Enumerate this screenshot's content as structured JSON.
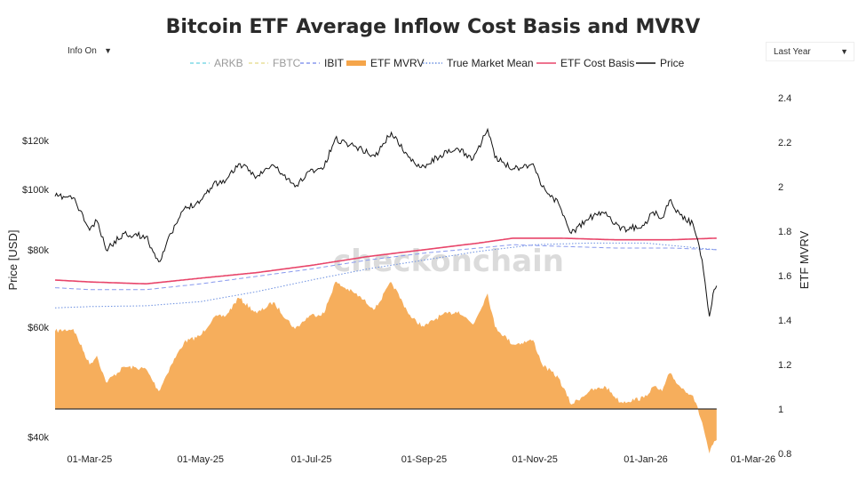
{
  "title": "Bitcoin ETF Average Inflow Cost Basis and MVRV",
  "controls": {
    "info_toggle": "Info On",
    "range_select": "Last Year",
    "arrow": "▼"
  },
  "watermark": "checkonchain",
  "colors": {
    "arkb": "#7fd8e6",
    "fbtc": "#e8df9a",
    "ibit": "#8899ee",
    "mvrv_fill": "#f5a54a",
    "true_market_mean": "#6b8fe0",
    "cost_basis": "#e8456a",
    "price": "#111111"
  },
  "chart_data": {
    "type": "line",
    "title": "Bitcoin ETF Average Inflow Cost Basis and MVRV",
    "ylabel": "Price [USD]",
    "y2label": "ETF MVRV",
    "yscale": "log",
    "ylim": [
      37000,
      150000
    ],
    "y2lim": [
      0.78,
      2.48
    ],
    "xlim": [
      "2025-02-09",
      "2026-03-06"
    ],
    "x_ticks": [
      "01-Mar-25",
      "01-May-25",
      "01-Jul-25",
      "01-Sep-25",
      "01-Nov-25",
      "01-Jan-26",
      "01-Mar-26"
    ],
    "y_ticks": [
      "$40k",
      "$60k",
      "$80k",
      "$100k",
      "$120k"
    ],
    "y_tick_values": [
      40000,
      60000,
      80000,
      100000,
      120000
    ],
    "y2_ticks": [
      "0.8",
      "1",
      "1.2",
      "1.4",
      "1.6",
      "1.8",
      "2",
      "2.2",
      "2.4"
    ],
    "y2_tick_values": [
      0.8,
      1,
      1.2,
      1.4,
      1.6,
      1.8,
      2,
      2.2,
      2.4
    ],
    "mvrv_baseline": 1,
    "legend": [
      "ARKB",
      "FBTC",
      "IBIT",
      "ETF MVRV",
      "True Market Mean",
      "ETF Cost Basis",
      "Price"
    ],
    "legend_placement": "top-center",
    "grid": false,
    "series": [
      {
        "name": "Price",
        "axis": "left",
        "points": [
          [
            "2025-02-10",
            97500
          ],
          [
            "2025-02-20",
            97000
          ],
          [
            "2025-03-01",
            86000
          ],
          [
            "2025-03-05",
            89000
          ],
          [
            "2025-03-10",
            80000
          ],
          [
            "2025-03-20",
            85000
          ],
          [
            "2025-04-01",
            84000
          ],
          [
            "2025-04-08",
            76500
          ],
          [
            "2025-04-15",
            85000
          ],
          [
            "2025-04-22",
            93000
          ],
          [
            "2025-05-01",
            96000
          ],
          [
            "2025-05-08",
            102000
          ],
          [
            "2025-05-15",
            103500
          ],
          [
            "2025-05-22",
            110000
          ],
          [
            "2025-06-01",
            105000
          ],
          [
            "2025-06-10",
            109500
          ],
          [
            "2025-06-22",
            101000
          ],
          [
            "2025-06-30",
            107000
          ],
          [
            "2025-07-08",
            108500
          ],
          [
            "2025-07-14",
            120500
          ],
          [
            "2025-07-25",
            117500
          ],
          [
            "2025-08-05",
            113000
          ],
          [
            "2025-08-14",
            123500
          ],
          [
            "2025-08-25",
            111000
          ],
          [
            "2025-09-01",
            109000
          ],
          [
            "2025-09-10",
            113500
          ],
          [
            "2025-09-20",
            116000
          ],
          [
            "2025-09-28",
            112000
          ],
          [
            "2025-10-06",
            125000
          ],
          [
            "2025-10-10",
            112500
          ],
          [
            "2025-10-20",
            108000
          ],
          [
            "2025-10-31",
            110000
          ],
          [
            "2025-11-05",
            101000
          ],
          [
            "2025-11-14",
            95000
          ],
          [
            "2025-11-21",
            85000
          ],
          [
            "2025-12-01",
            90000
          ],
          [
            "2025-12-10",
            92000
          ],
          [
            "2025-12-18",
            86000
          ],
          [
            "2025-12-31",
            87500
          ],
          [
            "2026-01-05",
            92000
          ],
          [
            "2026-01-10",
            90000
          ],
          [
            "2026-01-14",
            96000
          ],
          [
            "2026-01-20",
            91000
          ],
          [
            "2026-01-27",
            88000
          ],
          [
            "2026-02-01",
            77000
          ],
          [
            "2026-02-05",
            62500
          ],
          [
            "2026-02-07",
            68000
          ],
          [
            "2026-02-09",
            70000
          ]
        ]
      },
      {
        "name": "ETF Cost Basis",
        "axis": "left",
        "points": [
          [
            "2025-02-10",
            71500
          ],
          [
            "2025-03-01",
            71000
          ],
          [
            "2025-04-01",
            70500
          ],
          [
            "2025-05-01",
            72000
          ],
          [
            "2025-06-01",
            73500
          ],
          [
            "2025-07-01",
            75500
          ],
          [
            "2025-08-01",
            78000
          ],
          [
            "2025-09-01",
            80000
          ],
          [
            "2025-10-01",
            82000
          ],
          [
            "2025-10-20",
            83500
          ],
          [
            "2025-11-15",
            83500
          ],
          [
            "2025-12-15",
            83000
          ],
          [
            "2026-01-15",
            83000
          ],
          [
            "2026-02-09",
            83500
          ]
        ]
      },
      {
        "name": "IBIT",
        "axis": "left",
        "points": [
          [
            "2025-02-10",
            69500
          ],
          [
            "2025-03-01",
            69000
          ],
          [
            "2025-04-01",
            69000
          ],
          [
            "2025-05-01",
            70500
          ],
          [
            "2025-06-01",
            72500
          ],
          [
            "2025-07-01",
            74500
          ],
          [
            "2025-08-01",
            77000
          ],
          [
            "2025-09-01",
            79000
          ],
          [
            "2025-10-01",
            80500
          ],
          [
            "2025-10-20",
            81500
          ],
          [
            "2025-11-15",
            81000
          ],
          [
            "2025-12-15",
            80500
          ],
          [
            "2026-01-15",
            80500
          ],
          [
            "2026-02-09",
            80000
          ]
        ]
      },
      {
        "name": "True Market Mean",
        "axis": "left",
        "points": [
          [
            "2025-02-10",
            64500
          ],
          [
            "2025-03-01",
            64800
          ],
          [
            "2025-04-01",
            65000
          ],
          [
            "2025-05-01",
            66000
          ],
          [
            "2025-06-01",
            68500
          ],
          [
            "2025-07-01",
            71500
          ],
          [
            "2025-08-01",
            74500
          ],
          [
            "2025-09-01",
            77000
          ],
          [
            "2025-10-01",
            79500
          ],
          [
            "2025-11-01",
            81500
          ],
          [
            "2025-12-01",
            82000
          ],
          [
            "2026-01-01",
            82000
          ],
          [
            "2026-02-09",
            80000
          ]
        ]
      },
      {
        "name": "ETF MVRV",
        "axis": "right",
        "points": [
          [
            "2025-02-10",
            1.35
          ],
          [
            "2025-02-20",
            1.36
          ],
          [
            "2025-03-01",
            1.2
          ],
          [
            "2025-03-05",
            1.24
          ],
          [
            "2025-03-10",
            1.12
          ],
          [
            "2025-03-20",
            1.19
          ],
          [
            "2025-04-01",
            1.18
          ],
          [
            "2025-04-08",
            1.08
          ],
          [
            "2025-04-15",
            1.2
          ],
          [
            "2025-04-22",
            1.3
          ],
          [
            "2025-05-01",
            1.33
          ],
          [
            "2025-05-08",
            1.41
          ],
          [
            "2025-05-15",
            1.42
          ],
          [
            "2025-05-22",
            1.5
          ],
          [
            "2025-06-01",
            1.43
          ],
          [
            "2025-06-10",
            1.48
          ],
          [
            "2025-06-22",
            1.36
          ],
          [
            "2025-06-30",
            1.42
          ],
          [
            "2025-07-08",
            1.43
          ],
          [
            "2025-07-14",
            1.57
          ],
          [
            "2025-07-25",
            1.52
          ],
          [
            "2025-08-05",
            1.45
          ],
          [
            "2025-08-14",
            1.57
          ],
          [
            "2025-08-25",
            1.41
          ],
          [
            "2025-09-01",
            1.37
          ],
          [
            "2025-09-10",
            1.42
          ],
          [
            "2025-09-20",
            1.44
          ],
          [
            "2025-09-28",
            1.38
          ],
          [
            "2025-10-06",
            1.52
          ],
          [
            "2025-10-10",
            1.37
          ],
          [
            "2025-10-20",
            1.29
          ],
          [
            "2025-10-31",
            1.31
          ],
          [
            "2025-11-05",
            1.2
          ],
          [
            "2025-11-14",
            1.14
          ],
          [
            "2025-11-21",
            1.02
          ],
          [
            "2025-12-01",
            1.08
          ],
          [
            "2025-12-10",
            1.1
          ],
          [
            "2025-12-18",
            1.03
          ],
          [
            "2025-12-31",
            1.05
          ],
          [
            "2026-01-05",
            1.1
          ],
          [
            "2026-01-10",
            1.08
          ],
          [
            "2026-01-14",
            1.16
          ],
          [
            "2026-01-20",
            1.1
          ],
          [
            "2026-01-27",
            1.06
          ],
          [
            "2026-02-01",
            0.94
          ],
          [
            "2026-02-05",
            0.8
          ],
          [
            "2026-02-07",
            0.84
          ],
          [
            "2026-02-09",
            0.86
          ]
        ]
      }
    ]
  }
}
